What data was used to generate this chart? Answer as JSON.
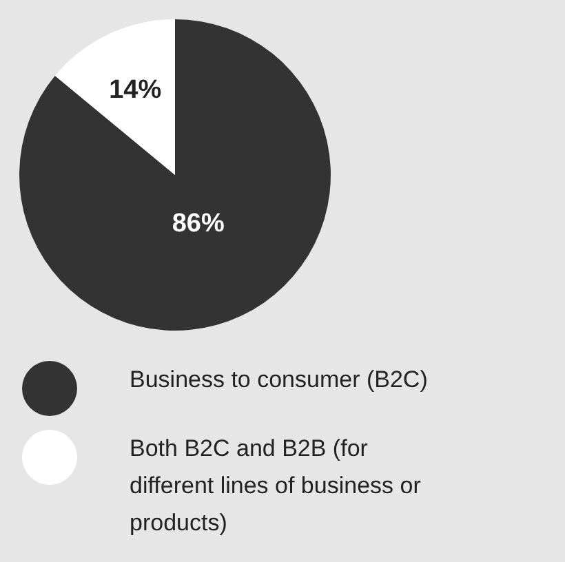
{
  "chart_data": {
    "type": "pie",
    "categories": [
      "Business to consumer (B2C)",
      "Both B2C and B2B (for different lines of business or products)"
    ],
    "values": [
      86,
      14
    ],
    "colors": [
      "#333333",
      "#ffffff"
    ],
    "value_labels": [
      "86%",
      "14%"
    ],
    "legend": "bottom"
  }
}
